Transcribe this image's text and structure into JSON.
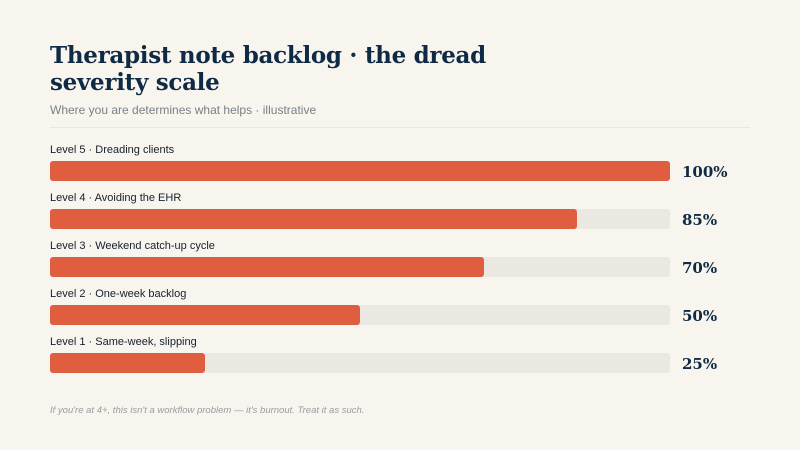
{
  "chart_data": {
    "type": "bar",
    "orientation": "horizontal",
    "title": "Therapist note backlog · the dread severity scale",
    "subtitle": "Where you are determines what helps · illustrative",
    "categories": [
      "Level 5 · Dreading clients",
      "Level 4 · Avoiding the EHR",
      "Level 3 · Weekend catch-up cycle",
      "Level 2 · One-week backlog",
      "Level 1 · Same-week, slipping"
    ],
    "values": [
      100,
      85,
      70,
      50,
      25
    ],
    "value_labels": [
      "100%",
      "85%",
      "70%",
      "50%",
      "25%"
    ],
    "xlim": [
      0,
      100
    ],
    "colors": {
      "bar": "#e05e3f",
      "track": "#ebe7e1"
    },
    "grid": false,
    "footnote": "If you're at 4+, this isn't a workflow problem — it's burnout. Treat it as such."
  }
}
